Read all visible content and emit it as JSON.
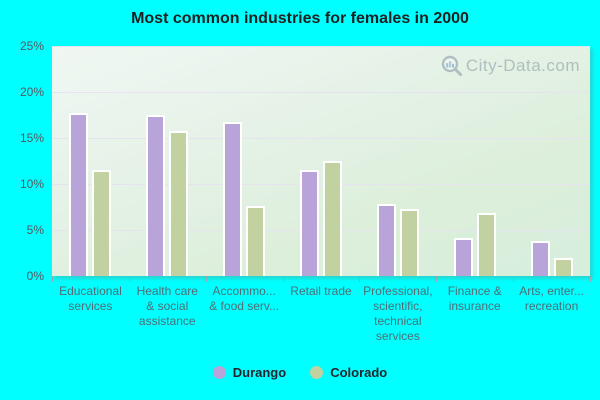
{
  "title": "Most common industries for females in 2000",
  "watermark": "City-Data.com",
  "colors": {
    "window_background": "#00ffff",
    "plot_gradient_top": "#f0f7f3",
    "plot_gradient_bottom": "#d7eedd",
    "gridline": "#e7e2f0",
    "durango_bar": "#b8a4d8",
    "colorado_bar": "#c1d2a0",
    "title_text": "#212121",
    "axis_label_text": "#4e6e76",
    "watermark_text": "#a4b2b6"
  },
  "chart_data": {
    "type": "bar",
    "title": "Most common industries for females in 2000",
    "categories": [
      "Educational services",
      "Health care & social assistance",
      "Accommo... & food serv...",
      "Retail trade",
      "Professional, scientific, technical services",
      "Finance & insurance",
      "Arts, enter... recreation"
    ],
    "category_label_lines": [
      [
        "Educational",
        "services"
      ],
      [
        "Health care",
        "& social",
        "assistance"
      ],
      [
        "Accommo...",
        "& food serv..."
      ],
      [
        "Retail trade"
      ],
      [
        "Professional,",
        "scientific,",
        "technical",
        "services"
      ],
      [
        "Finance &",
        "insurance"
      ],
      [
        "Arts, enter...",
        "recreation"
      ]
    ],
    "series": [
      {
        "name": "Durango",
        "color": "#b8a4d8",
        "values": [
          17.7,
          17.5,
          16.7,
          11.5,
          7.8,
          4.1,
          3.8
        ]
      },
      {
        "name": "Colorado",
        "color": "#c1d2a0",
        "values": [
          11.5,
          15.8,
          7.6,
          12.5,
          7.3,
          6.8,
          2.0
        ]
      }
    ],
    "xlabel": "",
    "ylabel": "",
    "ylim": [
      0,
      25
    ],
    "y_ticks": [
      {
        "label": "0%",
        "value": 0
      },
      {
        "label": "5%",
        "value": 5
      },
      {
        "label": "10%",
        "value": 10
      },
      {
        "label": "15%",
        "value": 15
      },
      {
        "label": "20%",
        "value": 20
      },
      {
        "label": "25%",
        "value": 25
      }
    ],
    "grid": "horizontal",
    "legend_position": "bottom"
  }
}
